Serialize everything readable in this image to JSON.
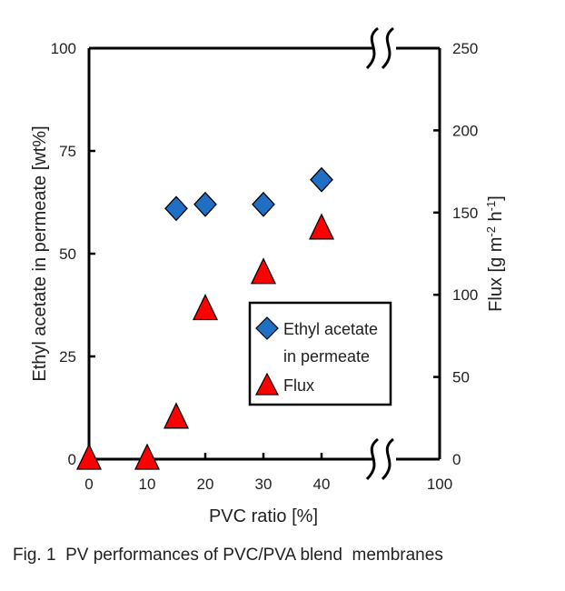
{
  "chart_data": {
    "type": "scatter",
    "title": "",
    "xlabel": "PVC ratio [%]",
    "ylabel_left": "Ethyl acetate in permeate [wt%]",
    "ylabel_right": "Flux [g m-2 h-1]",
    "x_ticks": [
      "0",
      "10",
      "20",
      "30",
      "40",
      "100"
    ],
    "x_tick_values": [
      0,
      10,
      20,
      30,
      40,
      100
    ],
    "x_axis_break": "between 40 and 100",
    "y_left_ticks": [
      "0",
      "25",
      "50",
      "75",
      "100"
    ],
    "y_left_lim": [
      0,
      100
    ],
    "y_right_ticks": [
      "0",
      "50",
      "100",
      "150",
      "200",
      "250"
    ],
    "y_right_lim": [
      0,
      250
    ],
    "grid": false,
    "legend_position": "center-right",
    "series": [
      {
        "name": "Ethyl acetate in permeate",
        "legend_label_lines": [
          "Ethyl acetate",
          "in permeate"
        ],
        "marker": "diamond",
        "color": "#1f6fc5",
        "axis": "left",
        "x": [
          15,
          20,
          30,
          40
        ],
        "y": [
          61,
          62,
          62,
          68
        ]
      },
      {
        "name": "Flux",
        "legend_label_lines": [
          "Flux"
        ],
        "marker": "triangle",
        "color": "#ff0000",
        "axis": "right",
        "x": [
          0,
          10,
          15,
          20,
          30,
          40
        ],
        "y": [
          0,
          0,
          25,
          91,
          113,
          140
        ]
      }
    ]
  },
  "caption": "Fig. 1  PV performances of PVC/PVA blend  membranes"
}
